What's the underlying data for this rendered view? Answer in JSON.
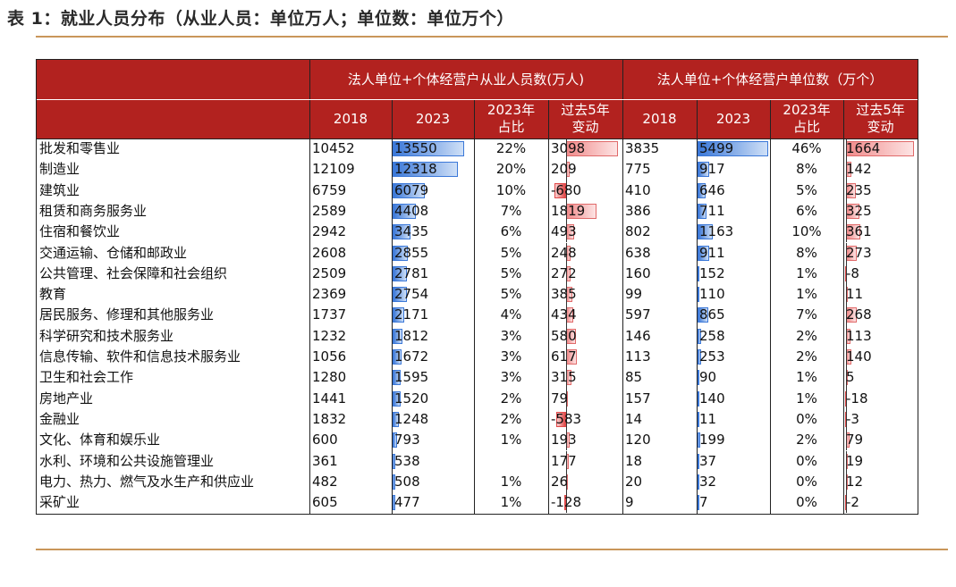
{
  "title": "表 1：就业人员分布（从业人员：单位万人；单位数：单位万个）",
  "header": {
    "group1": "法人单位+个体经营户从业人员数(万人)",
    "group2": "法人单位+个体经营户单位数（万个）",
    "col_2018": "2018",
    "col_2023": "2023",
    "col_share_line1": "2023年",
    "col_share_line2": "占比",
    "col_change_line1": "过去5年",
    "col_change_line2": "变动"
  },
  "colors": {
    "header_bg": "#b2221f",
    "rule": "#c9965a",
    "bar_blue": "#3b78d8",
    "bar_red": "#f08a8a"
  },
  "rows": [
    {
      "industry": "批发和零售业",
      "e2018": "10452",
      "e2023": "13550",
      "eshare": "22%",
      "echange": "3098",
      "u2018": "3835",
      "u2023": "5499",
      "ushare": "46%",
      "uchange": "1664"
    },
    {
      "industry": "制造业",
      "e2018": "12109",
      "e2023": "12318",
      "eshare": "20%",
      "echange": "209",
      "u2018": "775",
      "u2023": "917",
      "ushare": "8%",
      "uchange": "142"
    },
    {
      "industry": "建筑业",
      "e2018": "6759",
      "e2023": "6079",
      "eshare": "10%",
      "echange": "-680",
      "u2018": "410",
      "u2023": "646",
      "ushare": "5%",
      "uchange": "235"
    },
    {
      "industry": "租赁和商务服务业",
      "e2018": "2589",
      "e2023": "4408",
      "eshare": "7%",
      "echange": "1819",
      "u2018": "386",
      "u2023": "711",
      "ushare": "6%",
      "uchange": "325"
    },
    {
      "industry": "住宿和餐饮业",
      "e2018": "2942",
      "e2023": "3435",
      "eshare": "6%",
      "echange": "493",
      "u2018": "802",
      "u2023": "1163",
      "ushare": "10%",
      "uchange": "361"
    },
    {
      "industry": "交通运输、仓储和邮政业",
      "e2018": "2608",
      "e2023": "2855",
      "eshare": "5%",
      "echange": "248",
      "u2018": "638",
      "u2023": "911",
      "ushare": "8%",
      "uchange": "273"
    },
    {
      "industry": "公共管理、社会保障和社会组织",
      "e2018": "2509",
      "e2023": "2781",
      "eshare": "5%",
      "echange": "272",
      "u2018": "160",
      "u2023": "152",
      "ushare": "1%",
      "uchange": "-8"
    },
    {
      "industry": "教育",
      "e2018": "2369",
      "e2023": "2754",
      "eshare": "5%",
      "echange": "385",
      "u2018": "99",
      "u2023": "110",
      "ushare": "1%",
      "uchange": "11"
    },
    {
      "industry": "居民服务、修理和其他服务业",
      "e2018": "1737",
      "e2023": "2171",
      "eshare": "4%",
      "echange": "434",
      "u2018": "597",
      "u2023": "865",
      "ushare": "7%",
      "uchange": "268"
    },
    {
      "industry": "科学研究和技术服务业",
      "e2018": "1232",
      "e2023": "1812",
      "eshare": "3%",
      "echange": "580",
      "u2018": "146",
      "u2023": "258",
      "ushare": "2%",
      "uchange": "113"
    },
    {
      "industry": "信息传输、软件和信息技术服务业",
      "e2018": "1056",
      "e2023": "1672",
      "eshare": "3%",
      "echange": "617",
      "u2018": "113",
      "u2023": "253",
      "ushare": "2%",
      "uchange": "140"
    },
    {
      "industry": "卫生和社会工作",
      "e2018": "1280",
      "e2023": "1595",
      "eshare": "3%",
      "echange": "315",
      "u2018": "85",
      "u2023": "90",
      "ushare": "1%",
      "uchange": "5"
    },
    {
      "industry": "房地产业",
      "e2018": "1441",
      "e2023": "1520",
      "eshare": "2%",
      "echange": "79",
      "u2018": "157",
      "u2023": "140",
      "ushare": "1%",
      "uchange": "-18"
    },
    {
      "industry": "金融业",
      "e2018": "1832",
      "e2023": "1248",
      "eshare": "2%",
      "echange": "-583",
      "u2018": "14",
      "u2023": "11",
      "ushare": "0%",
      "uchange": "-3"
    },
    {
      "industry": "文化、体育和娱乐业",
      "e2018": "600",
      "e2023": "793",
      "eshare": "1%",
      "echange": "193",
      "u2018": "120",
      "u2023": "199",
      "ushare": "2%",
      "uchange": "79"
    },
    {
      "industry": "水利、环境和公共设施管理业",
      "e2018": "361",
      "e2023": "538",
      "eshare": "",
      "echange": "177",
      "u2018": "18",
      "u2023": "37",
      "ushare": "0%",
      "uchange": "19"
    },
    {
      "industry": "电力、热力、燃气及水生产和供应业",
      "e2018": "482",
      "e2023": "508",
      "eshare": "1%",
      "echange": "26",
      "u2018": "20",
      "u2023": "32",
      "ushare": "0%",
      "uchange": "12"
    },
    {
      "industry": "采矿业",
      "e2018": "605",
      "e2023": "477",
      "eshare": "1%",
      "echange": "-128",
      "u2018": "9",
      "u2023": "7",
      "ushare": "0%",
      "uchange": "-2"
    }
  ]
}
